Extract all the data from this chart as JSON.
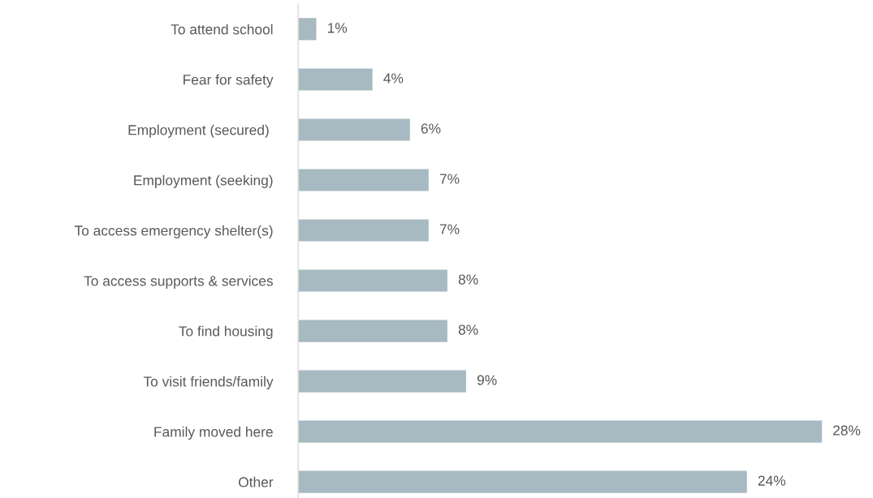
{
  "chart_data": {
    "type": "bar",
    "orientation": "horizontal",
    "categories": [
      "To attend school",
      "Fear for safety",
      "Employment (secured) ",
      "Employment (seeking)",
      "To access emergency shelter(s)",
      "To access supports & services",
      "To find housing",
      "To visit friends/family",
      "Family moved here",
      "Other"
    ],
    "values": [
      1,
      4,
      6,
      7,
      7,
      8,
      8,
      9,
      28,
      24
    ],
    "value_labels": [
      "1%",
      "4%",
      "6%",
      "7%",
      "7%",
      "8%",
      "8%",
      "9%",
      "28%",
      "24%"
    ],
    "color": "#a7b9c1",
    "grid": false,
    "legend": false
  }
}
